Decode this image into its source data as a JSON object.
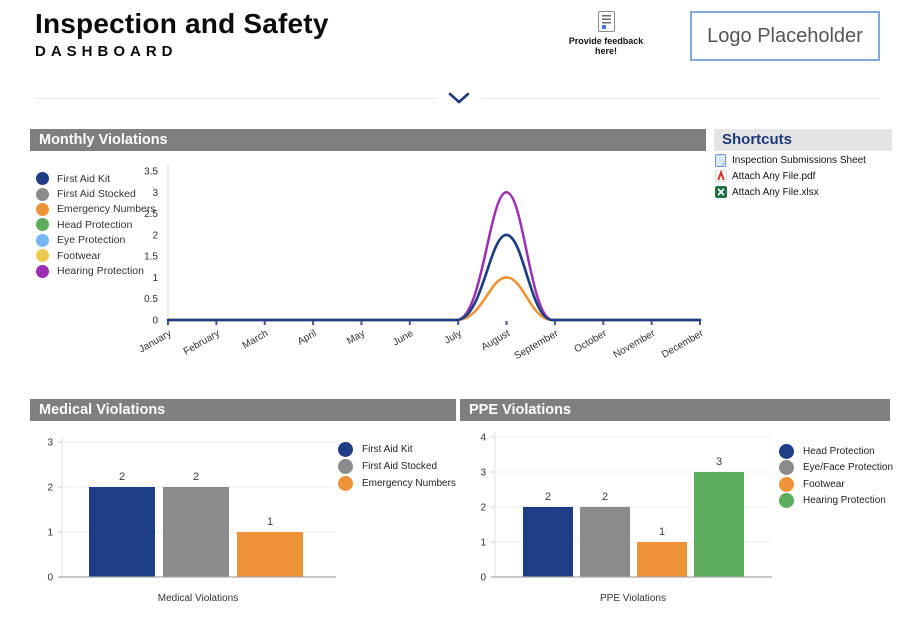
{
  "header": {
    "title": "Inspection and Safety",
    "subtitle": "DASHBOARD",
    "feedback": {
      "label": "Provide feedback here!",
      "icon": "feedback-form-icon"
    },
    "logo": {
      "text": "Logo Placeholder"
    }
  },
  "sections": {
    "monthly": {
      "title": "Monthly Violations"
    },
    "medical": {
      "title": "Medical Violations"
    },
    "ppe": {
      "title": "PPE Violations"
    },
    "shortcuts": {
      "title": "Shortcuts",
      "items": [
        {
          "label": "Inspection Submissions Sheet",
          "icon": "sheet-icon"
        },
        {
          "label": "Attach Any File.pdf",
          "icon": "pdf-icon"
        },
        {
          "label": "Attach Any File.xlsx",
          "icon": "excel-icon"
        }
      ]
    }
  },
  "colors": {
    "header_bar": "#7F7F7F",
    "accent_navy": "#1F3A77",
    "navy": "#1E3D85",
    "gray": "#8B8B8B",
    "orange": "#F09237",
    "green": "#5CAE5C",
    "lightblue": "#74B7F5",
    "yellow": "#EAC94F",
    "purple": "#9C2FB3",
    "logo_border": "#7FA8D9"
  },
  "chart_data": [
    {
      "id": "monthly-violations",
      "type": "line",
      "title": "Monthly Violations",
      "x": [
        "January",
        "February",
        "March",
        "April",
        "May",
        "June",
        "July",
        "August",
        "September",
        "October",
        "November",
        "December"
      ],
      "ylim": [
        0,
        3.5
      ],
      "yticks": [
        0,
        0.5,
        1,
        1.5,
        2,
        2.5,
        3,
        3.5
      ],
      "grid": false,
      "legend_position": "left",
      "series": [
        {
          "name": "First Aid Kit",
          "color": "#1E3D85",
          "values": [
            0,
            0,
            0,
            0,
            0,
            0,
            0,
            2,
            0,
            0,
            0,
            0
          ]
        },
        {
          "name": "First Aid Stocked",
          "color": "#8B8B8B",
          "values": [
            0,
            0,
            0,
            0,
            0,
            0,
            0,
            2,
            0,
            0,
            0,
            0
          ]
        },
        {
          "name": "Emergency Numbers",
          "color": "#F09237",
          "values": [
            0,
            0,
            0,
            0,
            0,
            0,
            0,
            1,
            0,
            0,
            0,
            0
          ]
        },
        {
          "name": "Head Protection",
          "color": "#5CAE5C",
          "values": [
            0,
            0,
            0,
            0,
            0,
            0,
            0,
            2,
            0,
            0,
            0,
            0
          ]
        },
        {
          "name": "Eye Protection",
          "color": "#74B7F5",
          "values": [
            0,
            0,
            0,
            0,
            0,
            0,
            0,
            2,
            0,
            0,
            0,
            0
          ]
        },
        {
          "name": "Footwear",
          "color": "#EAC94F",
          "values": [
            0,
            0,
            0,
            0,
            0,
            0,
            0,
            1,
            0,
            0,
            0,
            0
          ]
        },
        {
          "name": "Hearing Protection",
          "color": "#9C2FB3",
          "values": [
            0,
            0,
            0,
            0,
            0,
            0,
            0,
            3,
            0,
            0,
            0,
            0
          ]
        }
      ]
    },
    {
      "id": "medical-violations",
      "type": "bar",
      "title": "Medical Violations",
      "xlabel": "Medical Violations",
      "ylim": [
        0,
        3
      ],
      "yticks": [
        0,
        1,
        2,
        3
      ],
      "grid": true,
      "legend_position": "right",
      "categories": [
        "First Aid Kit",
        "First Aid Stocked",
        "Emergency Numbers"
      ],
      "values": [
        2,
        2,
        1
      ],
      "bar_colors": [
        "#1E3D85",
        "#8B8B8B",
        "#F09237"
      ]
    },
    {
      "id": "ppe-violations",
      "type": "bar",
      "title": "PPE Violations",
      "xlabel": "PPE Violations",
      "ylim": [
        0,
        4
      ],
      "yticks": [
        0,
        1,
        2,
        3,
        4
      ],
      "grid": true,
      "legend_position": "right",
      "categories": [
        "Head Protection",
        "Eye/Face Protection",
        "Footwear",
        "Hearing Protection"
      ],
      "values": [
        2,
        2,
        1,
        3
      ],
      "bar_colors": [
        "#1E3D85",
        "#8B8B8B",
        "#F09237",
        "#5CAE5C"
      ]
    }
  ]
}
